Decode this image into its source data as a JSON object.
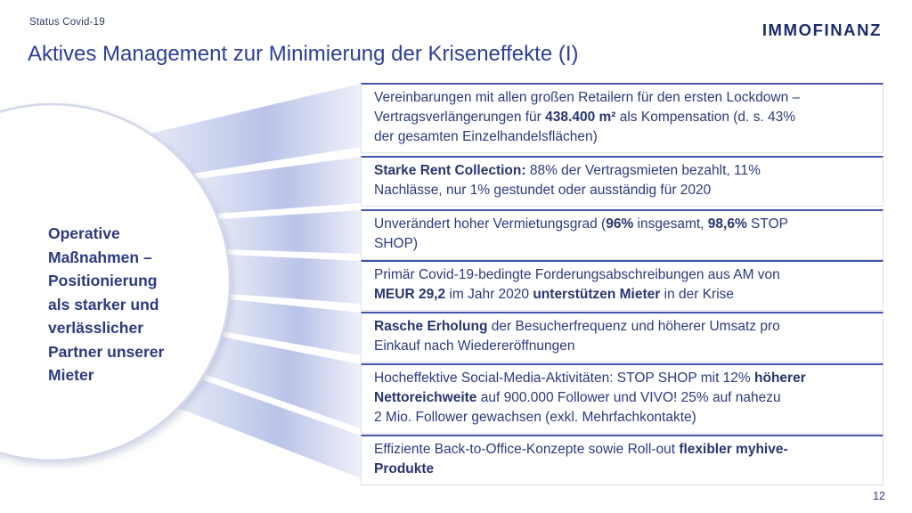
{
  "slide": {
    "eyebrow": "Status Covid-19",
    "title": "Aktives Management zur Minimierung der Kriseneffekte (I)",
    "logo_text": "IMMOFINANZ",
    "page_number": "12"
  },
  "bubble": {
    "text": "Operative Maßnahmen – Positionierung als starker und verlässlicher Partner unserer Mieter",
    "lines": [
      "Operative",
      "Maßnahmen –",
      "Positionierung",
      "als starker und",
      "verlässlicher",
      "Partner unserer",
      "Mieter"
    ]
  },
  "boxes": [
    {
      "lines": [
        [
          {
            "t": "Vereinbarungen mit allen großen Retailern für den ersten Lockdown –",
            "b": false
          }
        ],
        [
          {
            "t": "Vertragsverlängerungen für ",
            "b": false
          },
          {
            "t": "438.400 m²",
            "b": true
          },
          {
            "t": " als Kompensation (d. s. 43%",
            "b": false
          }
        ],
        [
          {
            "t": "der gesamten Einzelhandelsflächen)",
            "b": false
          }
        ]
      ]
    },
    {
      "lines": [
        [
          {
            "t": "Starke Rent Collection:",
            "b": true
          },
          {
            "t": " 88% der Vertragsmieten bezahlt, 11%",
            "b": false
          }
        ],
        [
          {
            "t": "Nachlässe, nur 1% gestundet oder ausständig für 2020",
            "b": false
          }
        ]
      ]
    },
    {
      "lines": [
        [
          {
            "t": "Unverändert hoher Vermietungsgrad (",
            "b": false
          },
          {
            "t": "96%",
            "b": true
          },
          {
            "t": " insgesamt, ",
            "b": false
          },
          {
            "t": "98,6%",
            "b": true
          },
          {
            "t": " STOP",
            "b": false
          }
        ],
        [
          {
            "t": "SHOP)",
            "b": false
          }
        ]
      ]
    },
    {
      "lines": [
        [
          {
            "t": "Primär Covid-19-bedingte Forderungsabschreibungen aus AM von",
            "b": false
          }
        ],
        [
          {
            "t": "MEUR 29,2",
            "b": true
          },
          {
            "t": " im Jahr 2020 ",
            "b": false
          },
          {
            "t": "unterstützen Mieter",
            "b": true
          },
          {
            "t": " in der Krise",
            "b": false
          }
        ]
      ]
    },
    {
      "lines": [
        [
          {
            "t": "Rasche Erholung",
            "b": true
          },
          {
            "t": " der Besucherfrequenz und höherer Umsatz pro",
            "b": false
          }
        ],
        [
          {
            "t": "Einkauf nach Wiedereröffnungen",
            "b": false
          }
        ]
      ]
    },
    {
      "lines": [
        [
          {
            "t": "Hocheffektive Social-Media-Aktivitäten: STOP SHOP mit 12% ",
            "b": false
          },
          {
            "t": "höherer",
            "b": true
          }
        ],
        [
          {
            "t": "Nettoreichweite",
            "b": true
          },
          {
            "t": " auf 900.000 Follower und VIVO! 25% auf nahezu",
            "b": false
          }
        ],
        [
          {
            "t": "2 Mio. Follower gewachsen (exkl. Mehrfachkontakte)",
            "b": false
          }
        ]
      ]
    },
    {
      "lines": [
        [
          {
            "t": "Effiziente Back-to-Office-Konzepte sowie Roll-out ",
            "b": false
          },
          {
            "t": "flexibler myhive-",
            "b": true
          }
        ],
        [
          {
            "t": "Produkte",
            "b": true
          }
        ]
      ]
    }
  ],
  "box_tops": [
    93,
    175,
    235,
    292,
    350,
    408,
    488
  ],
  "colors": {
    "title_blue": "#2c3f97",
    "text_navy": "#2d3a7d",
    "bold_navy": "#28356f",
    "logo_navy": "#1b2c6b",
    "box_border_top": "#4454a6",
    "box_border": "#dcdfeb",
    "beam_fill_mid": "#b9c3e8",
    "beam_fill_edge": "#e9ecf8",
    "circle_stroke": "#d3d8ea"
  }
}
